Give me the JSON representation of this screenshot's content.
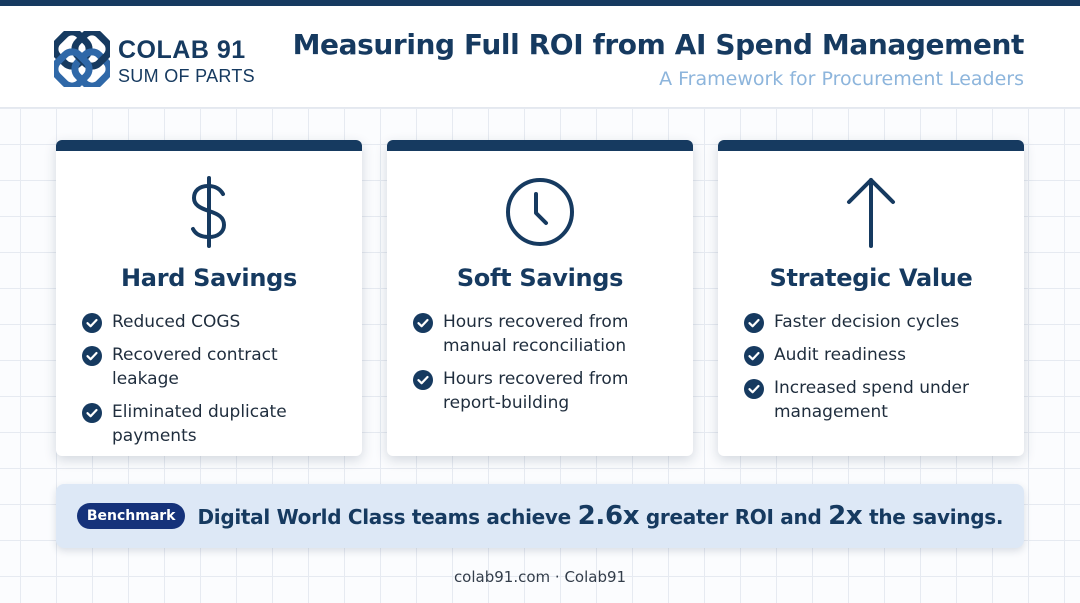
{
  "colors": {
    "navy": "#163a60",
    "accent": "#8db5dc",
    "badge": "#15327a",
    "panel": "#dde8f6"
  },
  "brand": {
    "name": "COLAB 91",
    "tagline": "SUM OF PARTS",
    "logo_icon": "interlocking-logo-icon"
  },
  "header": {
    "title": "Measuring Full ROI from AI Spend Management",
    "subtitle": "A Framework for Procurement Leaders"
  },
  "cards": [
    {
      "icon": "dollar-sign-icon",
      "title": "Hard Savings",
      "items": [
        "Reduced COGS",
        "Recovered contract leakage",
        "Eliminated duplicate payments"
      ]
    },
    {
      "icon": "clock-icon",
      "title": "Soft Savings",
      "items": [
        "Hours recovered from manual reconciliation",
        "Hours recovered from report-building"
      ]
    },
    {
      "icon": "arrow-up-icon",
      "title": "Strategic Value",
      "items": [
        "Faster decision cycles",
        "Audit readiness",
        "Increased spend under management"
      ]
    }
  ],
  "benchmark": {
    "badge": "Benchmark",
    "text_1": "Digital World Class teams achieve",
    "value_1": "2.6x",
    "text_2": "greater ROI and",
    "value_2": "2x",
    "text_3": "the savings."
  },
  "footer": {
    "text": "colab91.com · Colab91"
  }
}
